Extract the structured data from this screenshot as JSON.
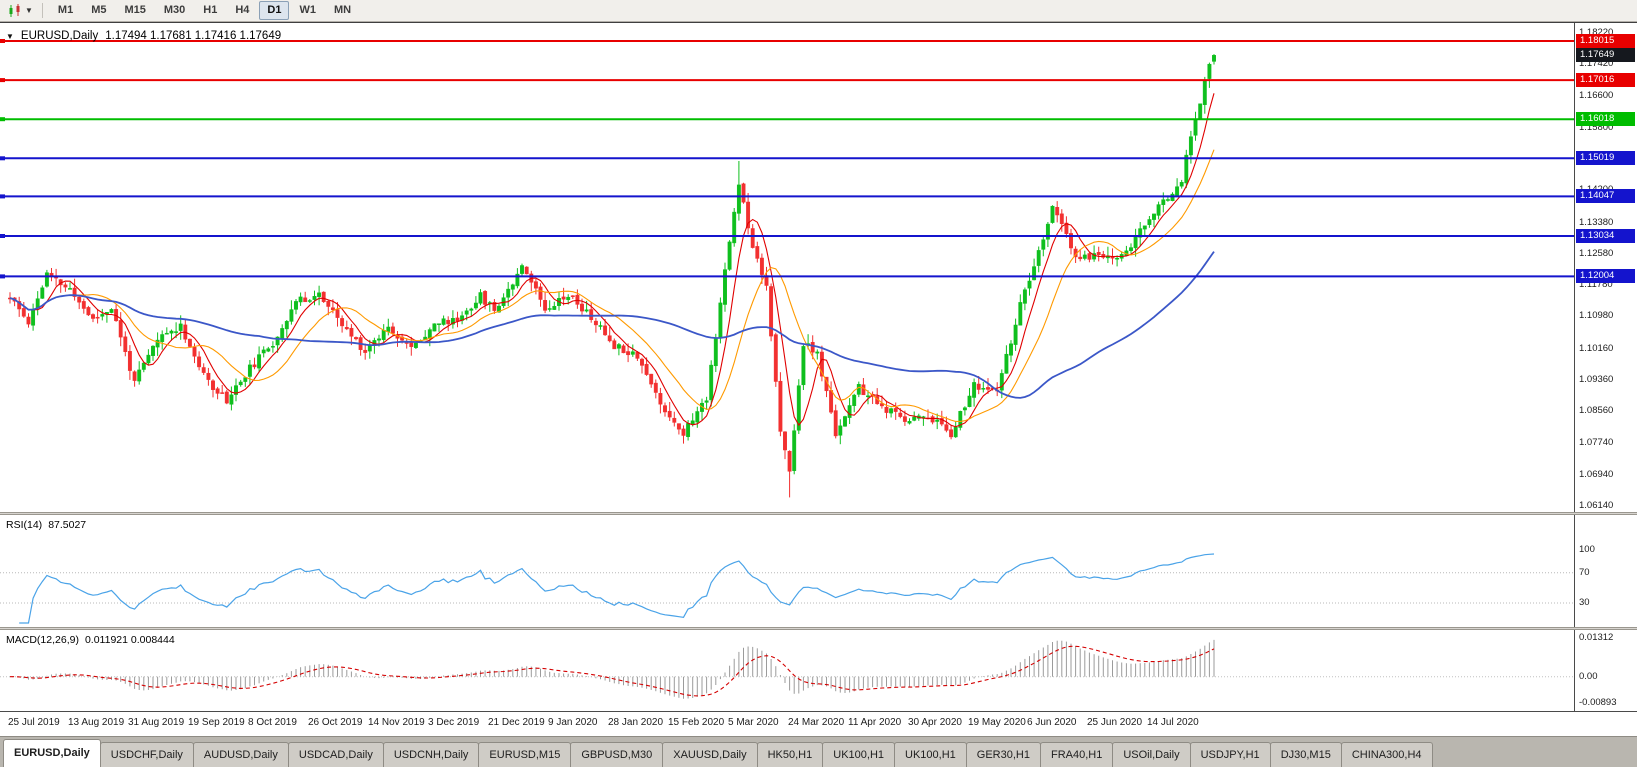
{
  "toolbar": {
    "chart_type_icon": "candlestick-chart-icon",
    "timeframes": [
      {
        "label": "M1",
        "active": false
      },
      {
        "label": "M5",
        "active": false
      },
      {
        "label": "M15",
        "active": false
      },
      {
        "label": "M30",
        "active": false
      },
      {
        "label": "H1",
        "active": false
      },
      {
        "label": "H4",
        "active": false
      },
      {
        "label": "D1",
        "active": true
      },
      {
        "label": "W1",
        "active": false
      },
      {
        "label": "MN",
        "active": false
      }
    ]
  },
  "chart": {
    "symbol_title": "EURUSD,Daily",
    "ohlc_text": "1.17494 1.17681 1.17416 1.17649",
    "price_range": {
      "max": 1.18475,
      "min": 1.05961
    },
    "axis_labels": [
      "1.18220",
      "1.17420",
      "1.16600",
      "1.15800",
      "1.15000",
      "1.14200",
      "1.13380",
      "1.12580",
      "1.11780",
      "1.10980",
      "1.10160",
      "1.09360",
      "1.08560",
      "1.07740",
      "1.06940",
      "1.06140"
    ],
    "levels": [
      {
        "label": "1.18015",
        "value": 1.18015,
        "color": "#e80000",
        "line": true,
        "width": 2
      },
      {
        "label": "1.17649",
        "value": 1.17649,
        "color": "#15181e",
        "line": false,
        "width": 0
      },
      {
        "label": "1.17016",
        "value": 1.17016,
        "color": "#e80000",
        "line": true,
        "width": 2
      },
      {
        "label": "1.16018",
        "value": 1.16018,
        "color": "#00bd00",
        "line": true,
        "width": 2
      },
      {
        "label": "1.15019",
        "value": 1.15019,
        "color": "#1414cd",
        "line": true,
        "width": 2
      },
      {
        "label": "1.14047",
        "value": 1.14047,
        "color": "#1414cd",
        "line": true,
        "width": 2
      },
      {
        "label": "1.13034",
        "value": 1.13034,
        "color": "#1414cd",
        "line": true,
        "width": 2
      },
      {
        "label": "1.12004",
        "value": 1.12004,
        "color": "#1414cd",
        "line": true,
        "width": 2
      }
    ]
  },
  "rsi": {
    "name": "RSI(14)",
    "value": "87.5027",
    "color": "#4aa3e8",
    "lines": [
      70,
      30
    ],
    "scale": [
      {
        "label": "100",
        "value": 100
      },
      {
        "label": "70",
        "value": 70
      },
      {
        "label": "30",
        "value": 30
      }
    ]
  },
  "macd": {
    "name": "MACD(12,26,9)",
    "values": "0.011921 0.008444",
    "hist_color": "#9b9b9b",
    "signal_color": "#d40000",
    "scale": [
      {
        "label": "0.01312",
        "value": 0.01312
      },
      {
        "label": "0.00",
        "value": 0
      },
      {
        "label": "-0.00893",
        "value": -0.00893
      }
    ]
  },
  "dates": [
    "25 Jul 2019",
    "13 Aug 2019",
    "31 Aug 2019",
    "19 Sep 2019",
    "8 Oct 2019",
    "26 Oct 2019",
    "14 Nov 2019",
    "3 Dec 2019",
    "21 Dec 2019",
    "9 Jan 2020",
    "28 Jan 2020",
    "15 Feb 2020",
    "5 Mar 2020",
    "24 Mar 2020",
    "11 Apr 2020",
    "30 Apr 2020",
    "19 May 2020",
    "6 Jun 2020",
    "25 Jun 2020",
    "14 Jul 2020"
  ],
  "tabs": [
    {
      "label": "EURUSD,Daily",
      "active": true
    },
    {
      "label": "USDCHF,Daily",
      "active": false
    },
    {
      "label": "AUDUSD,Daily",
      "active": false
    },
    {
      "label": "USDCAD,Daily",
      "active": false
    },
    {
      "label": "USDCNH,Daily",
      "active": false
    },
    {
      "label": "EURUSD,M15",
      "active": false
    },
    {
      "label": "GBPUSD,M30",
      "active": false
    },
    {
      "label": "XAUUSD,Daily",
      "active": false
    },
    {
      "label": "HK50,H1",
      "active": false
    },
    {
      "label": "UK100,H1",
      "active": false
    },
    {
      "label": "UK100,H1",
      "active": false
    },
    {
      "label": "GER30,H1",
      "active": false
    },
    {
      "label": "FRA40,H1",
      "active": false
    },
    {
      "label": "USOil,Daily",
      "active": false
    },
    {
      "label": "USDJPY,H1",
      "active": false
    },
    {
      "label": "DJ30,M15",
      "active": false
    },
    {
      "label": "CHINA300,H4",
      "active": false
    }
  ],
  "chart_data": {
    "type": "candlestick",
    "symbol": "EURUSD",
    "timeframe": "Daily",
    "num_candles": 262,
    "seed": 11,
    "noise": 0.002,
    "bull_color": "#0fbf1e",
    "bear_color": "#f23030",
    "last_ohlc": {
      "open": 1.17494,
      "high": 1.17681,
      "low": 1.17416,
      "close": 1.17649
    },
    "current_price": 1.17649,
    "horizontal_levels": [
      1.18015,
      1.17016,
      1.16018,
      1.15019,
      1.14047,
      1.13034,
      1.12004
    ],
    "anchors": [
      [
        0,
        1.1145
      ],
      [
        4,
        1.1085
      ],
      [
        8,
        1.1205
      ],
      [
        13,
        1.1165
      ],
      [
        18,
        1.109
      ],
      [
        22,
        1.112
      ],
      [
        27,
        1.093
      ],
      [
        32,
        1.104
      ],
      [
        37,
        1.1075
      ],
      [
        42,
        1.0945
      ],
      [
        47,
        1.0885
      ],
      [
        52,
        1.0965
      ],
      [
        57,
        1.103
      ],
      [
        62,
        1.1135
      ],
      [
        67,
        1.1155
      ],
      [
        72,
        1.1075
      ],
      [
        77,
        1.101
      ],
      [
        82,
        1.1075
      ],
      [
        87,
        1.1015
      ],
      [
        92,
        1.108
      ],
      [
        97,
        1.109
      ],
      [
        102,
        1.115
      ],
      [
        105,
        1.1115
      ],
      [
        109,
        1.1185
      ],
      [
        111,
        1.1235
      ],
      [
        116,
        1.112
      ],
      [
        121,
        1.1155
      ],
      [
        126,
        1.1095
      ],
      [
        131,
        1.1025
      ],
      [
        136,
        1.1
      ],
      [
        141,
        1.0875
      ],
      [
        146,
        1.08
      ],
      [
        151,
        1.089
      ],
      [
        154,
        1.1135
      ],
      [
        158,
        1.144
      ],
      [
        161,
        1.128
      ],
      [
        164,
        1.118
      ],
      [
        167,
        1.08
      ],
      [
        169,
        1.07
      ],
      [
        172,
        1.103
      ],
      [
        175,
        1.1
      ],
      [
        179,
        1.08
      ],
      [
        184,
        1.0915
      ],
      [
        189,
        1.0865
      ],
      [
        194,
        1.0835
      ],
      [
        199,
        1.0845
      ],
      [
        204,
        1.08
      ],
      [
        209,
        1.092
      ],
      [
        214,
        1.0905
      ],
      [
        219,
        1.1125
      ],
      [
        224,
        1.129
      ],
      [
        226,
        1.1385
      ],
      [
        231,
        1.1245
      ],
      [
        236,
        1.1255
      ],
      [
        241,
        1.125
      ],
      [
        246,
        1.133
      ],
      [
        251,
        1.1405
      ],
      [
        254,
        1.1445
      ],
      [
        256,
        1.156
      ],
      [
        258,
        1.165
      ],
      [
        260,
        1.174
      ],
      [
        261,
        1.17649
      ]
    ],
    "extremes": [
      {
        "index": 158,
        "high": 1.1495
      },
      {
        "index": 169,
        "low": 1.0636
      }
    ],
    "moving_averages": [
      {
        "period": 6,
        "color": "#e00000",
        "width": 1.1
      },
      {
        "period": 14,
        "color": "#ff9a00",
        "width": 1.1
      },
      {
        "period": 55,
        "color": "#3b57c8",
        "width": 1.8
      }
    ],
    "indicators": {
      "rsi": {
        "period": 14,
        "last": 87.5027
      },
      "macd": {
        "fast": 12,
        "slow": 26,
        "signal": 9,
        "last_macd": 0.011921,
        "last_signal": 0.008444
      }
    }
  }
}
